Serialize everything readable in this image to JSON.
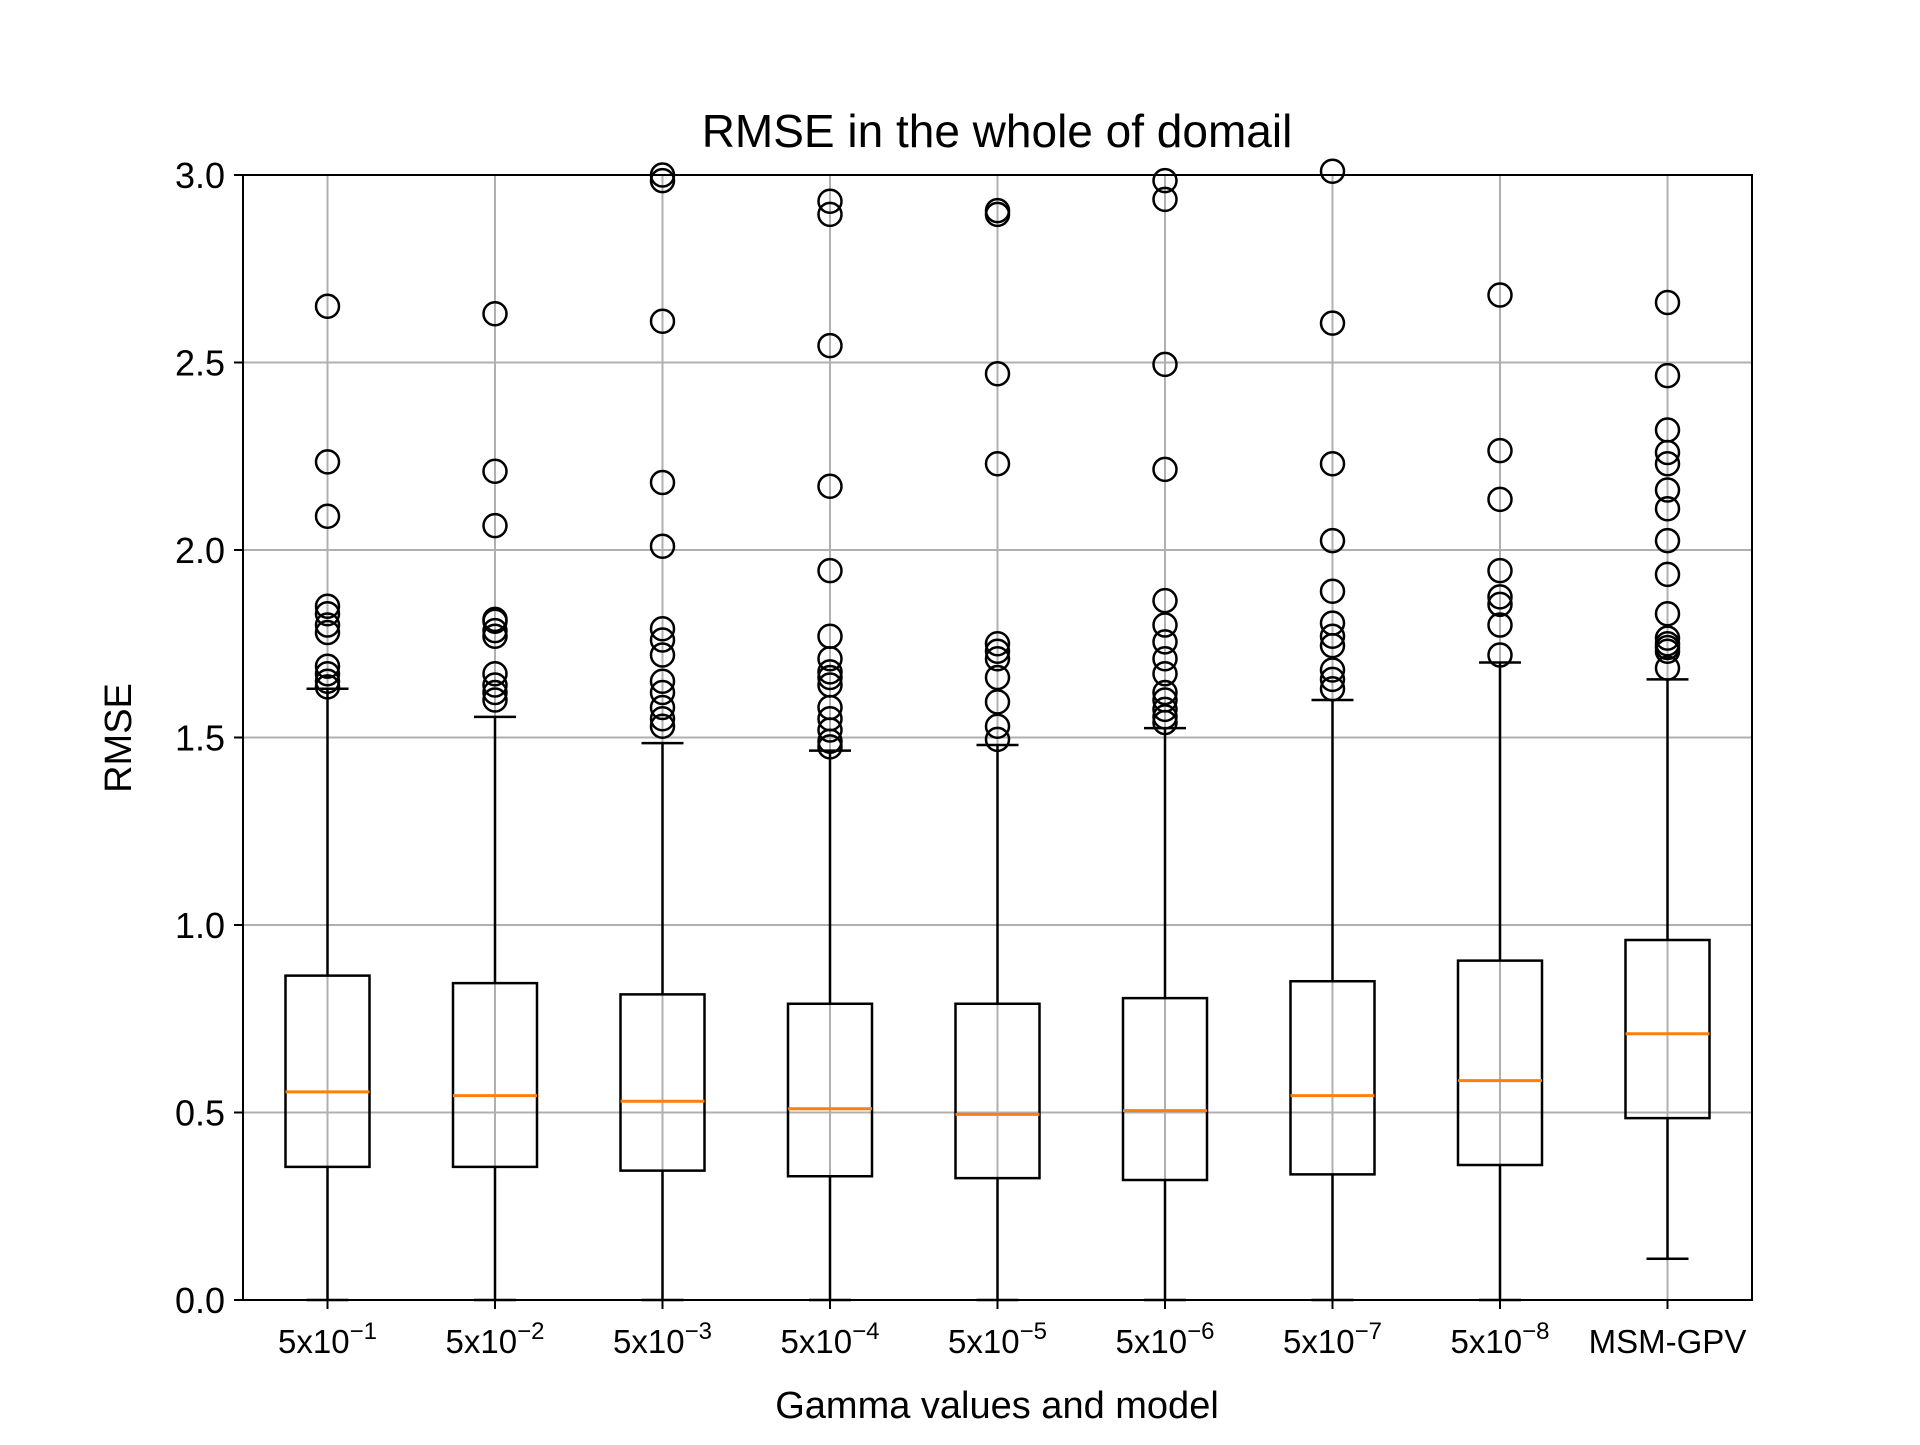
{
  "chart_data": {
    "type": "box",
    "title": "RMSE in the whole of domail",
    "xlabel": "Gamma values and model",
    "ylabel": "RMSE",
    "ylim": [
      0.0,
      3.0
    ],
    "yticks": [
      "0.0",
      "0.5",
      "1.0",
      "1.5",
      "2.0",
      "2.5",
      "3.0"
    ],
    "grid": true,
    "median_color": "#ff7f0e",
    "box_color": "#000000",
    "categories": [
      {
        "base": "5x10",
        "exp": "−1"
      },
      {
        "base": "5x10",
        "exp": "−2"
      },
      {
        "base": "5x10",
        "exp": "−3"
      },
      {
        "base": "5x10",
        "exp": "−4"
      },
      {
        "base": "5x10",
        "exp": "−5"
      },
      {
        "base": "5x10",
        "exp": "−6"
      },
      {
        "base": "5x10",
        "exp": "−7"
      },
      {
        "base": "5x10",
        "exp": "−8"
      },
      {
        "base": "MSM-GPV",
        "exp": ""
      }
    ],
    "boxes": [
      {
        "whislo": 0.0,
        "q1": 0.355,
        "med": 0.555,
        "q3": 0.865,
        "whishi": 1.63,
        "fliers": [
          2.65,
          2.235,
          2.09,
          1.85,
          1.83,
          1.8,
          1.78,
          1.69,
          1.67,
          1.65,
          1.635
        ]
      },
      {
        "whislo": 0.0,
        "q1": 0.355,
        "med": 0.545,
        "q3": 0.845,
        "whishi": 1.555,
        "fliers": [
          2.63,
          2.21,
          2.065,
          1.815,
          1.81,
          1.785,
          1.77,
          1.67,
          1.64,
          1.62,
          1.6
        ]
      },
      {
        "whislo": 0.0,
        "q1": 0.345,
        "med": 0.53,
        "q3": 0.815,
        "whishi": 1.485,
        "fliers": [
          3.0,
          2.985,
          2.61,
          2.18,
          2.01,
          1.79,
          1.76,
          1.72,
          1.65,
          1.62,
          1.58,
          1.55,
          1.53
        ]
      },
      {
        "whislo": 0.0,
        "q1": 0.33,
        "med": 0.51,
        "q3": 0.79,
        "whishi": 1.465,
        "fliers": [
          2.93,
          2.895,
          2.545,
          2.17,
          1.945,
          1.77,
          1.71,
          1.675,
          1.66,
          1.64,
          1.58,
          1.55,
          1.52,
          1.49,
          1.475
        ]
      },
      {
        "whislo": 0.0,
        "q1": 0.325,
        "med": 0.495,
        "q3": 0.79,
        "whishi": 1.48,
        "fliers": [
          2.905,
          2.895,
          2.47,
          2.23,
          1.75,
          1.73,
          1.71,
          1.66,
          1.595,
          1.53,
          1.495
        ]
      },
      {
        "whislo": 0.0,
        "q1": 0.32,
        "med": 0.505,
        "q3": 0.805,
        "whishi": 1.525,
        "fliers": [
          2.985,
          2.935,
          2.495,
          2.215,
          1.865,
          1.8,
          1.755,
          1.71,
          1.67,
          1.62,
          1.6,
          1.575,
          1.555,
          1.54
        ]
      },
      {
        "whislo": 0.0,
        "q1": 0.335,
        "med": 0.545,
        "q3": 0.85,
        "whishi": 1.6,
        "fliers": [
          3.01,
          2.605,
          2.23,
          2.025,
          1.89,
          1.805,
          1.77,
          1.745,
          1.68,
          1.655,
          1.63
        ]
      },
      {
        "whislo": 0.0,
        "q1": 0.36,
        "med": 0.585,
        "q3": 0.905,
        "whishi": 1.7,
        "fliers": [
          2.68,
          2.265,
          2.135,
          1.945,
          1.875,
          1.855,
          1.8,
          1.72
        ]
      },
      {
        "whislo": 0.11,
        "q1": 0.485,
        "med": 0.71,
        "q3": 0.96,
        "whishi": 1.655,
        "fliers": [
          2.66,
          2.465,
          2.32,
          2.26,
          2.23,
          2.16,
          2.11,
          2.025,
          1.935,
          1.83,
          1.765,
          1.75,
          1.74,
          1.73,
          1.685
        ]
      }
    ]
  }
}
